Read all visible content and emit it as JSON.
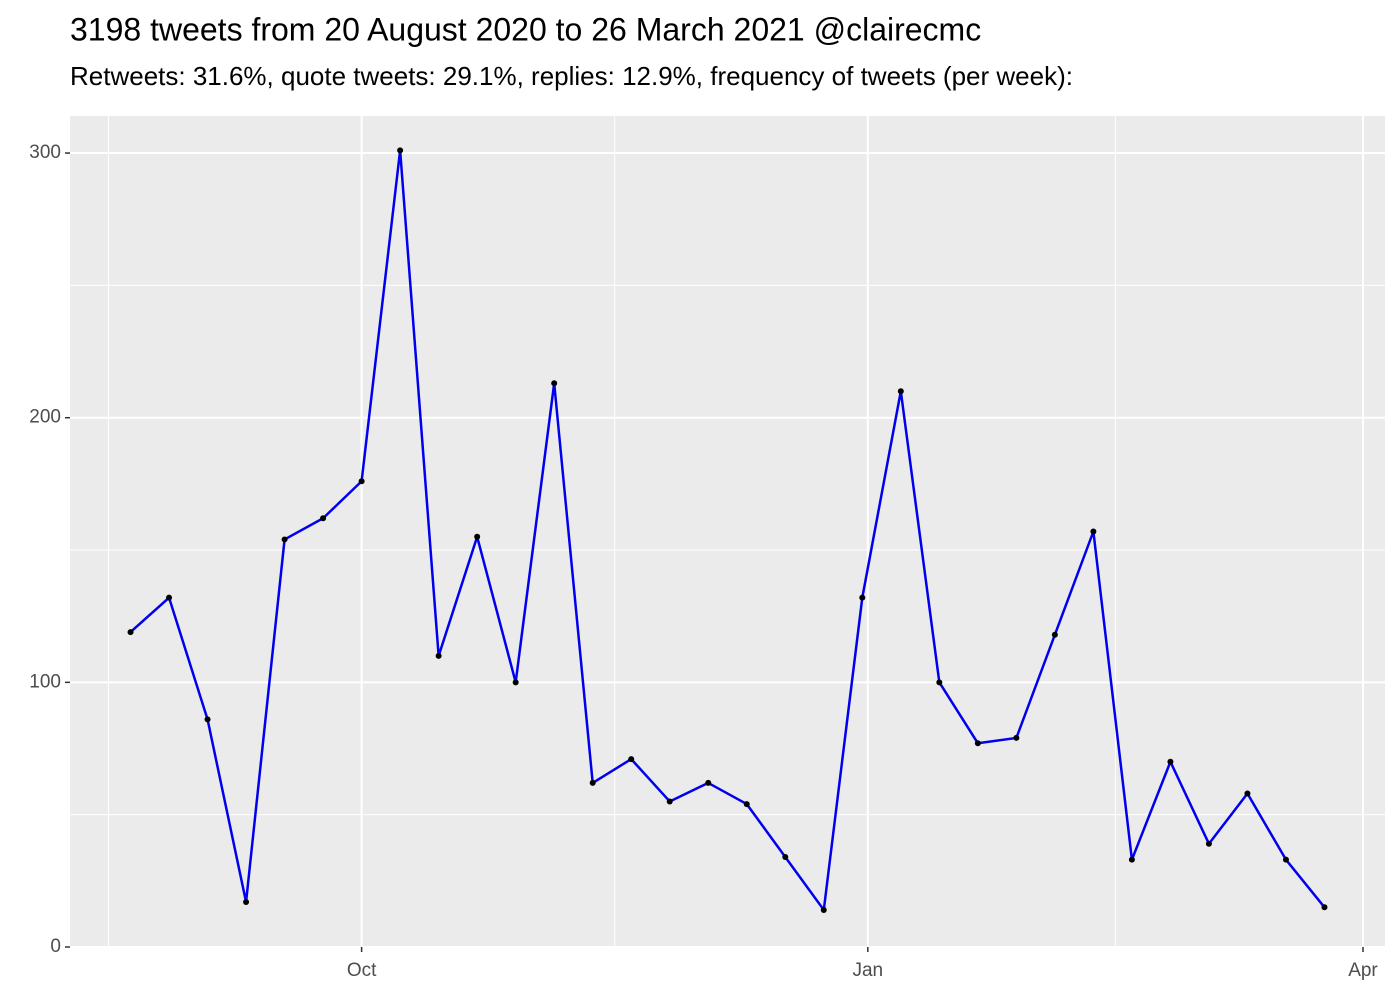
{
  "chart_data": {
    "type": "line",
    "title": "3198 tweets from 20 August 2020 to 26 March 2021 @clairecmc",
    "subtitle": "Retweets: 31.6%, quote tweets: 29.1%, replies: 12.9%, frequency of tweets (per week):",
    "x": [
      0,
      7,
      14,
      21,
      28,
      35,
      42,
      49,
      56,
      63,
      70,
      77,
      84,
      91,
      98,
      105,
      112,
      119,
      126,
      133,
      140,
      147,
      154,
      161,
      168,
      175,
      182,
      189,
      196,
      203,
      210,
      217
    ],
    "series": [
      {
        "color": "#0000ee",
        "point_color": "#000000",
        "values": [
          119,
          132,
          86,
          17,
          154,
          162,
          176,
          301,
          110,
          155,
          100,
          213,
          62,
          71,
          55,
          62,
          54,
          34,
          14,
          132,
          210,
          100,
          77,
          79,
          118,
          157,
          33,
          70,
          39,
          58,
          33,
          15
        ]
      }
    ],
    "xlim": [
      -11,
      228
    ],
    "xticks": [
      {
        "value": 42,
        "label": "Oct"
      },
      {
        "value": 134,
        "label": "Jan"
      },
      {
        "value": 224,
        "label": "Apr"
      }
    ],
    "xminor": [
      -4,
      88,
      179
    ],
    "ylim": [
      0,
      314
    ],
    "yticks": [
      0,
      100,
      200,
      300
    ],
    "yminor": [
      50,
      150,
      250
    ],
    "grid": true
  }
}
